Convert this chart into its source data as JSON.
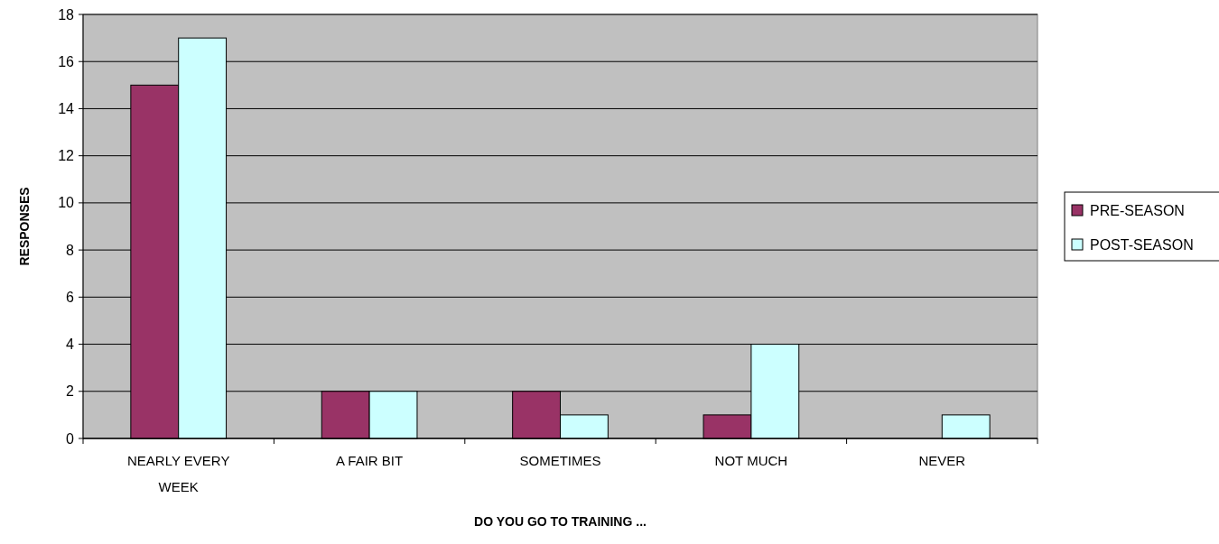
{
  "chart_data": {
    "type": "bar",
    "xlabel": "DO YOU GO TO TRAINING ...",
    "ylabel": "RESPONSES",
    "categories": [
      "NEARLY EVERY WEEK",
      "A FAIR BIT",
      "SOMETIMES",
      "NOT MUCH",
      "NEVER"
    ],
    "series": [
      {
        "name": "PRE-SEASON",
        "color": "#993366",
        "values": [
          15,
          2,
          2,
          1,
          0
        ]
      },
      {
        "name": "POST-SEASON",
        "color": "#ccffff",
        "values": [
          17,
          2,
          1,
          4,
          1
        ]
      }
    ],
    "ylim": [
      0,
      18
    ],
    "yticks": [
      0,
      2,
      4,
      6,
      8,
      10,
      12,
      14,
      16,
      18
    ],
    "grid": "y",
    "legend": "right"
  }
}
